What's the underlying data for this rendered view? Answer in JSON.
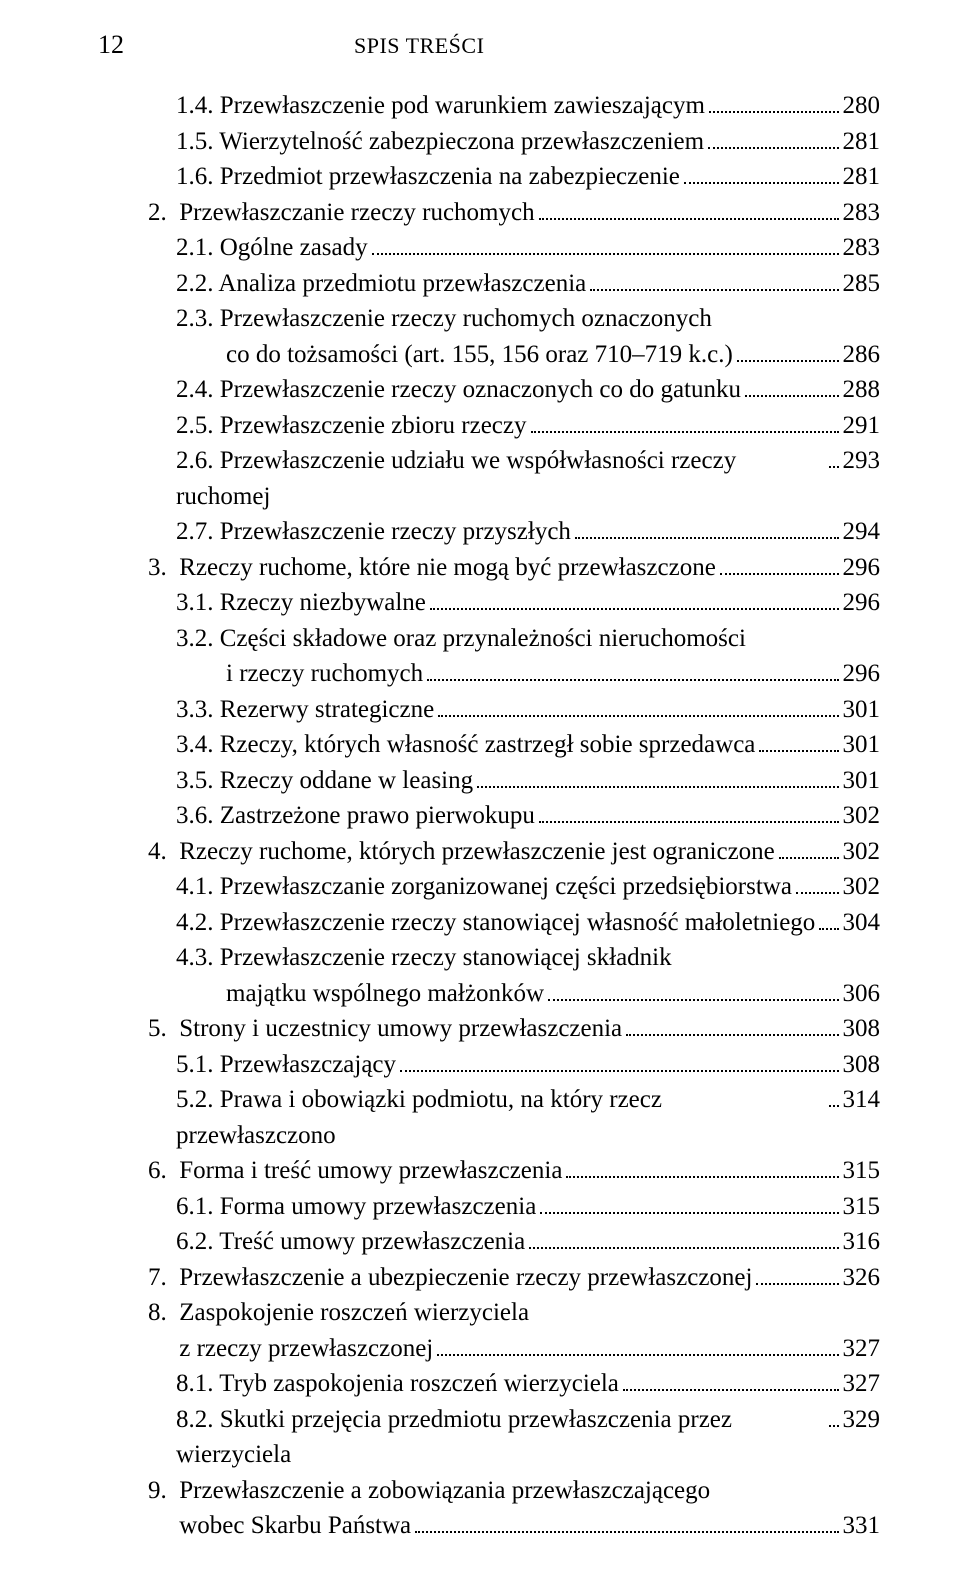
{
  "page_number": "12",
  "running_title": "SPIS TREŚCI",
  "text_color": "#000000",
  "background_color": "#ffffff",
  "base_font_size_pt": 12,
  "entries": [
    {
      "indent": 2,
      "label": "1.4. Przewłaszczenie pod warunkiem zawieszającym",
      "page": "280"
    },
    {
      "indent": 2,
      "label": "1.5. Wierzytelność zabezpieczona przewłaszczeniem",
      "page": "281"
    },
    {
      "indent": 2,
      "label": "1.6. Przedmiot przewłaszczenia na zabezpieczenie",
      "page": "281"
    },
    {
      "indent": 1,
      "label": "2.  Przewłaszczanie rzeczy ruchomych",
      "page": "283"
    },
    {
      "indent": 2,
      "label": "2.1. Ogólne zasady",
      "page": "283"
    },
    {
      "indent": 2,
      "label": "2.2. Analiza przedmiotu przewłaszczenia",
      "page": "285"
    },
    {
      "indent": 2,
      "label": "2.3. Przewłaszczenie rzeczy ruchomych oznaczonych",
      "cont": true
    },
    {
      "indent": 3,
      "label": "co do tożsamości (art. 155, 156 oraz 710–719 k.c.)",
      "page": "286"
    },
    {
      "indent": 2,
      "label": "2.4. Przewłaszczenie rzeczy oznaczonych co do gatunku",
      "page": "288"
    },
    {
      "indent": 2,
      "label": "2.5. Przewłaszczenie zbioru rzeczy",
      "page": "291"
    },
    {
      "indent": 2,
      "label": "2.6. Przewłaszczenie udziału we współwłasności rzeczy ruchomej",
      "page": "293"
    },
    {
      "indent": 2,
      "label": "2.7. Przewłaszczenie rzeczy przyszłych",
      "page": "294"
    },
    {
      "indent": 1,
      "label": "3.  Rzeczy ruchome, które nie mogą być przewłaszczone",
      "page": "296"
    },
    {
      "indent": 2,
      "label": "3.1. Rzeczy niezbywalne",
      "page": "296"
    },
    {
      "indent": 2,
      "label": "3.2. Części składowe oraz przynależności nieruchomości",
      "cont": true
    },
    {
      "indent": 3,
      "label": "i rzeczy ruchomych",
      "page": "296"
    },
    {
      "indent": 2,
      "label": "3.3. Rezerwy strategiczne",
      "page": "301"
    },
    {
      "indent": 2,
      "label": "3.4. Rzeczy, których własność zastrzegł sobie sprzedawca",
      "page": "301"
    },
    {
      "indent": 2,
      "label": "3.5. Rzeczy oddane w leasing",
      "page": "301"
    },
    {
      "indent": 2,
      "label": "3.6. Zastrzeżone prawo pierwokupu",
      "page": "302"
    },
    {
      "indent": 1,
      "label": "4.  Rzeczy ruchome, których przewłaszczenie jest ograniczone",
      "page": "302"
    },
    {
      "indent": 2,
      "label": "4.1. Przewłaszczanie zorganizowanej części przedsiębiorstwa",
      "page": "302"
    },
    {
      "indent": 2,
      "label": "4.2. Przewłaszczenie rzeczy stanowiącej własność małoletniego",
      "page": "304"
    },
    {
      "indent": 2,
      "label": "4.3. Przewłaszczenie rzeczy stanowiącej składnik",
      "cont": true
    },
    {
      "indent": 3,
      "label": "majątku wspólnego małżonków",
      "page": "306"
    },
    {
      "indent": 1,
      "label": "5.  Strony i uczestnicy umowy przewłaszczenia",
      "page": "308"
    },
    {
      "indent": 2,
      "label": "5.1. Przewłaszczający",
      "page": "308"
    },
    {
      "indent": 2,
      "label": "5.2. Prawa i obowiązki podmiotu, na który rzecz przewłaszczono",
      "page": "314"
    },
    {
      "indent": 1,
      "label": "6.  Forma i treść umowy przewłaszczenia",
      "page": "315"
    },
    {
      "indent": 2,
      "label": "6.1. Forma umowy przewłaszczenia",
      "page": "315"
    },
    {
      "indent": 2,
      "label": "6.2. Treść umowy przewłaszczenia",
      "page": "316"
    },
    {
      "indent": 1,
      "label": "7.  Przewłaszczenie a ubezpieczenie rzeczy przewłaszczonej",
      "page": "326"
    },
    {
      "indent": 1,
      "label": "8.  Zaspokojenie roszczeń wierzyciela",
      "cont": true
    },
    {
      "indent": 1,
      "label": "     z rzeczy przewłaszczonej",
      "page": "327"
    },
    {
      "indent": 2,
      "label": "8.1. Tryb zaspokojenia roszczeń wierzyciela",
      "page": "327"
    },
    {
      "indent": 2,
      "label": "8.2. Skutki przejęcia przedmiotu przewłaszczenia przez wierzyciela",
      "page": "329"
    },
    {
      "indent": 1,
      "label": "9.  Przewłaszczenie a zobowiązania przewłaszczającego",
      "cont": true
    },
    {
      "indent": 1,
      "label": "     wobec Skarbu Państwa",
      "page": "331"
    }
  ]
}
